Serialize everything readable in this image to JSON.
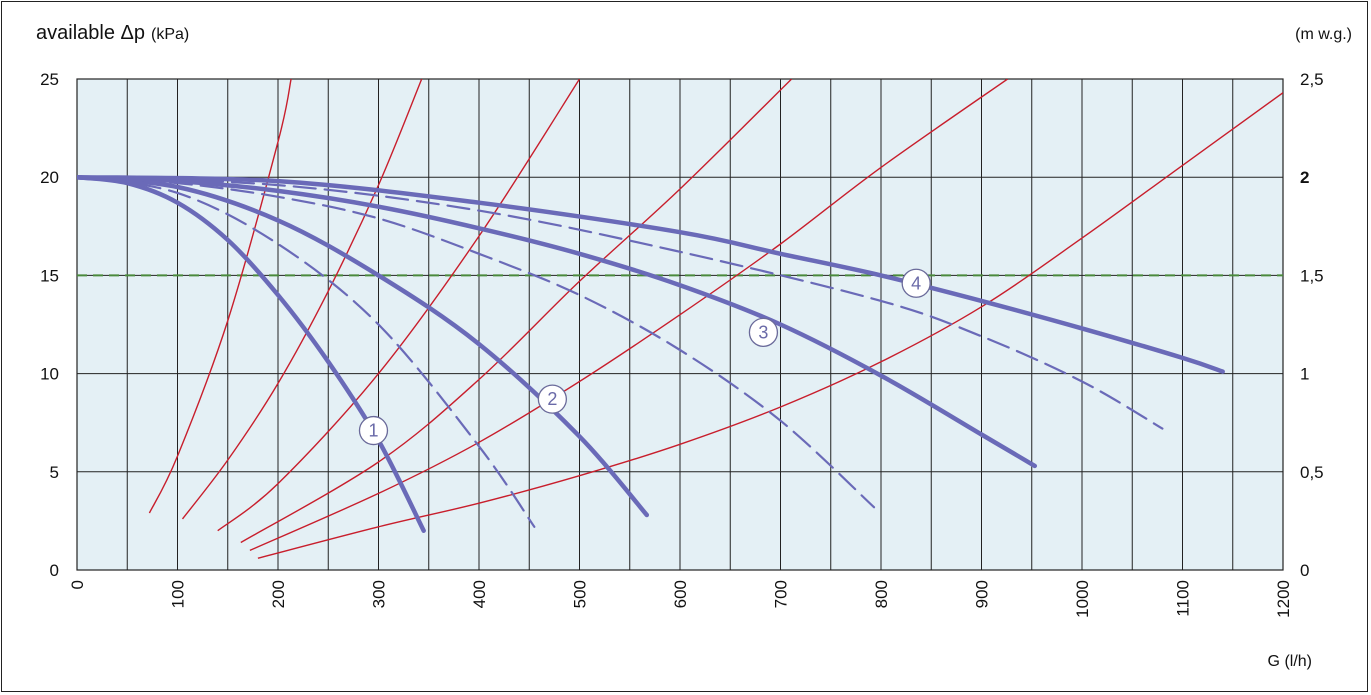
{
  "chart_data": {
    "type": "line",
    "title": "available Δp (kPa)",
    "title_parts": {
      "main": "available Δp",
      "unit": "(kPa)"
    },
    "ylabel_right": "(m w.g.)",
    "xlabel": "G (l/h)",
    "xlim": [
      0,
      1200
    ],
    "ylim": [
      0,
      25
    ],
    "ylim_right": [
      0,
      2.5
    ],
    "x_ticks": [
      "0",
      "100",
      "200",
      "300",
      "400",
      "500",
      "600",
      "700",
      "800",
      "900",
      "1000",
      "1100",
      "1200"
    ],
    "y_ticks": [
      "0",
      "5",
      "10",
      "15",
      "20",
      "25"
    ],
    "y_ticks_right": [
      "0",
      "0,5",
      "1",
      "1,5",
      "2",
      "2,5"
    ],
    "y_tick_right_bold": "2",
    "grid": true,
    "background_color": "#e4f0f5",
    "grid_color": "#222222",
    "reference_line": {
      "y": 15,
      "style": "dashed",
      "color": "#4a8a3c"
    },
    "pump_curves": [
      {
        "label": "1",
        "style": "solid",
        "color": "#6a6ab8",
        "marker_at": [
          295,
          7.1
        ],
        "x": [
          0,
          50,
          100,
          150,
          200,
          250,
          300,
          345
        ],
        "y": [
          20,
          19.7,
          18.7,
          16.8,
          14,
          10.6,
          6.6,
          2
        ]
      },
      {
        "label": "",
        "style": "dashed",
        "color": "#6a6ab8",
        "x": [
          0,
          100,
          200,
          300,
          400,
          455
        ],
        "y": [
          20,
          19.2,
          16.6,
          12.5,
          6.3,
          2.2
        ]
      },
      {
        "label": "2",
        "style": "solid",
        "color": "#6a6ab8",
        "marker_at": [
          473,
          8.7
        ],
        "x": [
          0,
          100,
          200,
          300,
          400,
          500,
          567
        ],
        "y": [
          20,
          19.5,
          17.8,
          15,
          11.5,
          6.8,
          2.8
        ]
      },
      {
        "label": "",
        "style": "dashed",
        "color": "#6a6ab8",
        "x": [
          0,
          100,
          200,
          300,
          400,
          500,
          600,
          700,
          793
        ],
        "y": [
          20,
          19.7,
          19,
          17.9,
          16.1,
          14,
          11.2,
          7.6,
          3.2
        ]
      },
      {
        "label": "3",
        "style": "solid",
        "color": "#6a6ab8",
        "marker_at": [
          683,
          12.1
        ],
        "x": [
          0,
          100,
          200,
          300,
          400,
          500,
          600,
          700,
          800,
          900,
          953
        ],
        "y": [
          20,
          19.8,
          19.3,
          18.5,
          17.4,
          16.1,
          14.5,
          12.5,
          9.9,
          6.9,
          5.3
        ]
      },
      {
        "label": "",
        "style": "dashed",
        "color": "#6a6ab8",
        "x": [
          0,
          200,
          400,
          600,
          800,
          900,
          1000,
          1080
        ],
        "y": [
          20,
          19.6,
          18.3,
          16.2,
          13.7,
          11.9,
          9.6,
          7.2
        ]
      },
      {
        "label": "4",
        "style": "solid",
        "color": "#6a6ab8",
        "marker_at": [
          835,
          14.6
        ],
        "x": [
          0,
          200,
          400,
          600,
          700,
          800,
          900,
          1000,
          1100,
          1140
        ],
        "y": [
          20,
          19.8,
          18.7,
          17.2,
          16.1,
          15,
          13.7,
          12.3,
          10.8,
          10.1
        ]
      }
    ],
    "system_curves": [
      {
        "style": "solid",
        "color": "#c81e2c",
        "x": [
          72,
          100,
          150,
          200,
          213
        ],
        "y": [
          2.9,
          5.8,
          12.7,
          21.8,
          25
        ]
      },
      {
        "style": "solid",
        "color": "#c81e2c",
        "x": [
          105,
          150,
          200,
          250,
          300,
          343
        ],
        "y": [
          2.6,
          5.6,
          9.5,
          14.2,
          19.6,
          25
        ]
      },
      {
        "style": "solid",
        "color": "#c81e2c",
        "x": [
          140,
          200,
          300,
          400,
          500
        ],
        "y": [
          2,
          4.4,
          10,
          17,
          25
        ]
      },
      {
        "style": "solid",
        "color": "#c81e2c",
        "x": [
          163,
          300,
          400,
          500,
          600,
          711
        ],
        "y": [
          1.4,
          5.5,
          9.7,
          14.7,
          19.4,
          25
        ]
      },
      {
        "style": "solid",
        "color": "#c81e2c",
        "x": [
          172,
          300,
          400,
          500,
          600,
          700,
          800,
          926
        ],
        "y": [
          1,
          3.9,
          6.5,
          9.6,
          13,
          16.6,
          20.5,
          25
        ]
      },
      {
        "style": "solid",
        "color": "#c81e2c",
        "x": [
          180,
          300,
          400,
          500,
          600,
          700,
          800,
          900,
          1000,
          1100,
          1200
        ],
        "y": [
          0.6,
          2.2,
          3.4,
          4.8,
          6.4,
          8.3,
          10.6,
          13.4,
          16.9,
          20.6,
          24.3
        ]
      }
    ]
  }
}
